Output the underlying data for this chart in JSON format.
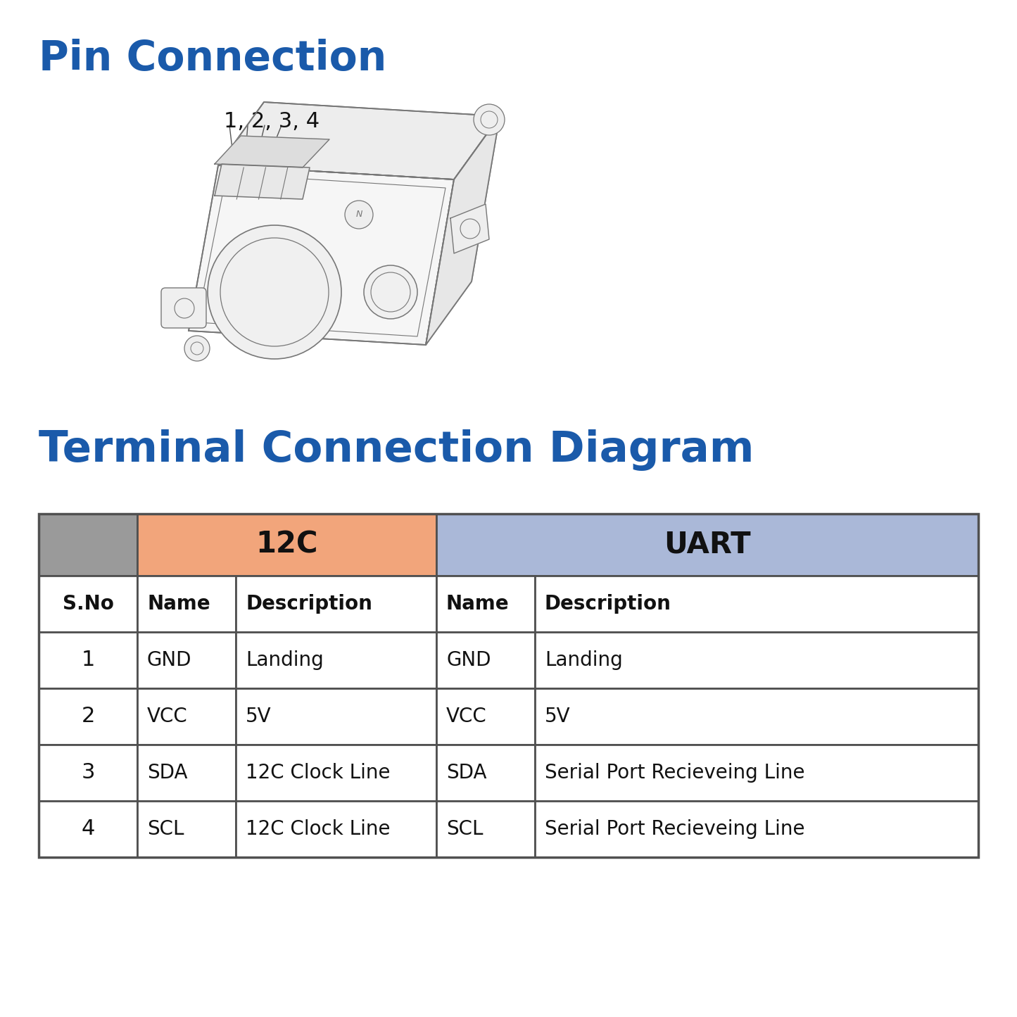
{
  "title_pin": "Pin Connection",
  "title_terminal": "Terminal Connection Diagram",
  "title_color": "#1a5aaa",
  "bg_color": "#ffffff",
  "pin_label": "1, 2, 3, 4",
  "table_header_row2": [
    "S.No",
    "Name",
    "Description",
    "Name",
    "Description"
  ],
  "table_data": [
    [
      "1",
      "GND",
      "Landing",
      "GND",
      "Landing"
    ],
    [
      "2",
      "VCC",
      "5V",
      "VCC",
      "5V"
    ],
    [
      "3",
      "SDA",
      "12C Clock Line",
      "SDA",
      "Serial Port Recieveing Line"
    ],
    [
      "4",
      "SCL",
      "12C Clock Line",
      "SCL",
      "Serial Port Recieveing Line"
    ]
  ],
  "i2c_header_color": "#f2a57b",
  "uart_header_color": "#aab8d8",
  "gray_header_color": "#9a9a9a",
  "table_border_color": "#505050",
  "sketch_color": "#777777",
  "sketch_lw": 1.0
}
